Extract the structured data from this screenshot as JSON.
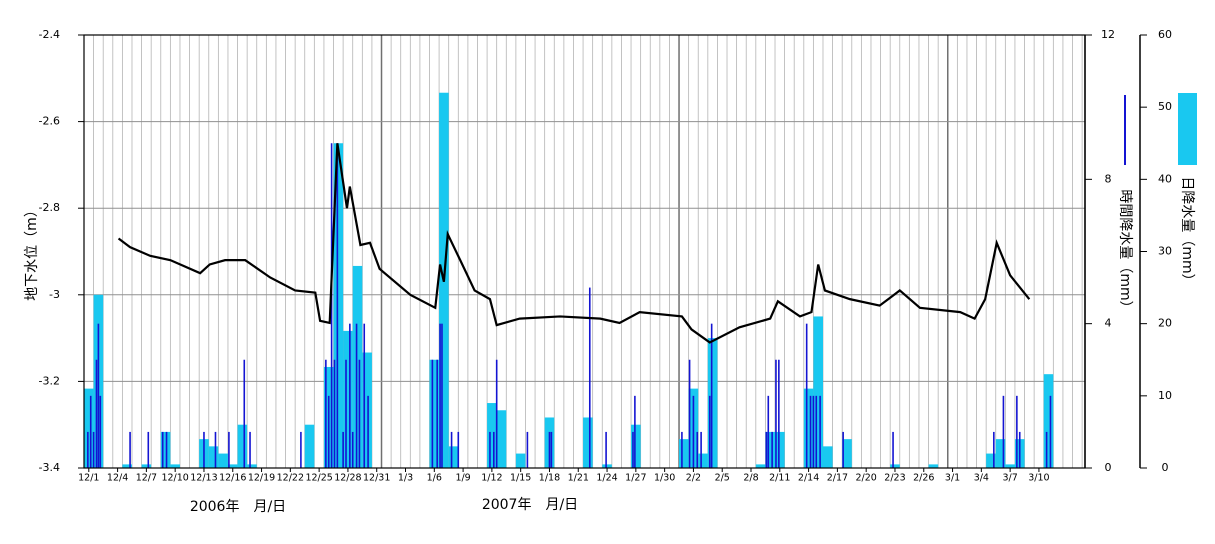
{
  "chart_data": {
    "type": "combo",
    "y_label": "地下水位（m）",
    "x_label_1": "2006年　月/日",
    "x_label_2": "2007年　月/日",
    "xlim": [
      -0.5,
      103.8
    ],
    "xticks": [
      {
        "value": 0,
        "label": "12/1"
      },
      {
        "value": 3,
        "label": "12/4"
      },
      {
        "value": 6,
        "label": "12/7"
      },
      {
        "value": 9,
        "label": "12/10"
      },
      {
        "value": 12,
        "label": "12/13"
      },
      {
        "value": 15,
        "label": "12/16"
      },
      {
        "value": 18,
        "label": "12/19"
      },
      {
        "value": 21,
        "label": "12/22"
      },
      {
        "value": 24,
        "label": "12/25"
      },
      {
        "value": 27,
        "label": "12/28"
      },
      {
        "value": 30,
        "label": "12/31"
      },
      {
        "value": 33,
        "label": "1/3"
      },
      {
        "value": 36,
        "label": "1/6"
      },
      {
        "value": 39,
        "label": "1/9"
      },
      {
        "value": 42,
        "label": "1/12"
      },
      {
        "value": 45,
        "label": "1/15"
      },
      {
        "value": 48,
        "label": "1/18"
      },
      {
        "value": 51,
        "label": "1/21"
      },
      {
        "value": 54,
        "label": "1/24"
      },
      {
        "value": 57,
        "label": "1/27"
      },
      {
        "value": 60,
        "label": "1/30"
      },
      {
        "value": 63,
        "label": "2/2"
      },
      {
        "value": 66,
        "label": "2/5"
      },
      {
        "value": 69,
        "label": "2/8"
      },
      {
        "value": 72,
        "label": "2/11"
      },
      {
        "value": 75,
        "label": "2/14"
      },
      {
        "value": 78,
        "label": "2/17"
      },
      {
        "value": 81,
        "label": "2/20"
      },
      {
        "value": 84,
        "label": "2/23"
      },
      {
        "value": 87,
        "label": "2/26"
      },
      {
        "value": 90,
        "label": "3/1"
      },
      {
        "value": 93,
        "label": "3/4"
      },
      {
        "value": 96,
        "label": "3/7"
      },
      {
        "value": 99,
        "label": "3/10"
      }
    ],
    "ylim": [
      -3.4,
      -2.4
    ],
    "yticks": [
      -3.4,
      -3.2,
      -3,
      -2.8,
      -2.6,
      -2.4
    ],
    "y2lim": [
      0,
      12
    ],
    "y2ticks": [
      0,
      4,
      8,
      12
    ],
    "y3lim": [
      0,
      60
    ],
    "y3ticks": [
      0,
      10,
      20,
      30,
      40,
      50,
      60
    ],
    "grid": true,
    "series": [
      {
        "name": "日降水量（mm）",
        "type": "bar",
        "axis": "y3",
        "color": "#19c8f0",
        "x": [
          0,
          1,
          4,
          6,
          8,
          9,
          12,
          13,
          14,
          15,
          16,
          17,
          23,
          25,
          26,
          27,
          28,
          29,
          36,
          37,
          38,
          42,
          43,
          45,
          48,
          52,
          54,
          57,
          62,
          63,
          64,
          65,
          70,
          71,
          72,
          75,
          76,
          77,
          79,
          84,
          88,
          94,
          95,
          96,
          97,
          100
        ],
        "values": [
          11,
          24,
          0.5,
          0.5,
          5,
          0.5,
          4,
          3,
          2,
          0.5,
          6,
          0.5,
          6,
          14,
          45,
          19,
          28,
          16,
          15,
          52,
          3,
          9,
          8,
          2,
          7,
          7,
          0.5,
          6,
          4,
          11,
          2,
          18,
          0.5,
          5,
          5,
          11,
          21,
          3,
          4,
          0.5,
          0.5,
          2,
          4,
          0.5,
          4,
          13
        ]
      },
      {
        "name": "時間降水量（mm）",
        "type": "bar",
        "axis": "y2",
        "color": "#1414d2",
        "x": [
          -0.1,
          0.2,
          0.5,
          0.8,
          1.0,
          1.2,
          4.3,
          6.2,
          7.7,
          8.1,
          12.0,
          13.2,
          14.6,
          16.2,
          16.8,
          22.1,
          24.7,
          25.0,
          25.3,
          25.6,
          25.9,
          26.5,
          26.8,
          27.2,
          27.5,
          27.9,
          28.2,
          28.7,
          29.1,
          35.8,
          36.3,
          36.6,
          36.8,
          37.8,
          38.5,
          41.8,
          42.2,
          42.5,
          45.7,
          48.0,
          48.2,
          52.2,
          53.9,
          56.7,
          56.9,
          61.8,
          62.6,
          63.0,
          63.4,
          63.8,
          64.7,
          64.9,
          70.6,
          70.8,
          71.2,
          71.6,
          71.9,
          74.8,
          75.2,
          75.5,
          75.8,
          76.2,
          78.6,
          83.8,
          94.3,
          95.3,
          96.7,
          97.0,
          99.8,
          100.2
        ],
        "values": [
          1,
          2,
          1,
          3,
          4,
          2,
          1,
          1,
          1,
          1,
          1,
          1,
          1,
          3,
          1,
          1,
          3,
          2,
          9,
          3,
          9,
          1,
          3,
          4,
          1,
          4,
          3,
          4,
          2,
          3,
          3,
          4,
          4,
          1,
          1,
          1,
          1,
          3,
          1,
          1,
          1,
          5,
          1,
          1,
          2,
          1,
          3,
          2,
          1,
          1,
          2,
          4,
          1,
          2,
          1,
          3,
          3,
          4,
          2,
          2,
          2,
          2,
          1,
          1,
          1,
          2,
          2,
          1,
          1,
          2
        ]
      },
      {
        "name": "地下水位",
        "type": "line",
        "axis": "y",
        "color": "#000000",
        "x": [
          3.1,
          4.3,
          6.4,
          8.5,
          11.6,
          12.6,
          14.2,
          16.3,
          18.9,
          21.5,
          23.6,
          24.1,
          25.1,
          25.9,
          26.9,
          27.2,
          28.3,
          29.3,
          30.3,
          33.5,
          36.1,
          36.6,
          37.0,
          37.4,
          38.7,
          40.2,
          41.8,
          42.5,
          44.9,
          49.1,
          53.3,
          55.3,
          57.4,
          61.8,
          62.8,
          64.7,
          67.8,
          71.0,
          71.8,
          74.1,
          75.3,
          76.0,
          76.7,
          79.3,
          82.4,
          84.5,
          86.6,
          90.8,
          92.3,
          93.4,
          94.6,
          96.0,
          98.0
        ],
        "values": [
          -2.87,
          -2.89,
          -2.91,
          -2.92,
          -2.95,
          -2.93,
          -2.92,
          -2.92,
          -2.96,
          -2.99,
          -2.995,
          -3.06,
          -3.065,
          -2.65,
          -2.8,
          -2.75,
          -2.885,
          -2.88,
          -2.94,
          -3,
          -3.03,
          -2.93,
          -2.97,
          -2.86,
          -2.92,
          -2.99,
          -3.01,
          -3.07,
          -3.055,
          -3.05,
          -3.055,
          -3.065,
          -3.04,
          -3.05,
          -3.08,
          -3.11,
          -3.075,
          -3.055,
          -3.015,
          -3.05,
          -3.04,
          -2.93,
          -2.99,
          -3.01,
          -3.025,
          -2.99,
          -3.03,
          -3.04,
          -3.055,
          -3.01,
          -2.88,
          -2.955,
          -3.01
        ]
      }
    ]
  }
}
